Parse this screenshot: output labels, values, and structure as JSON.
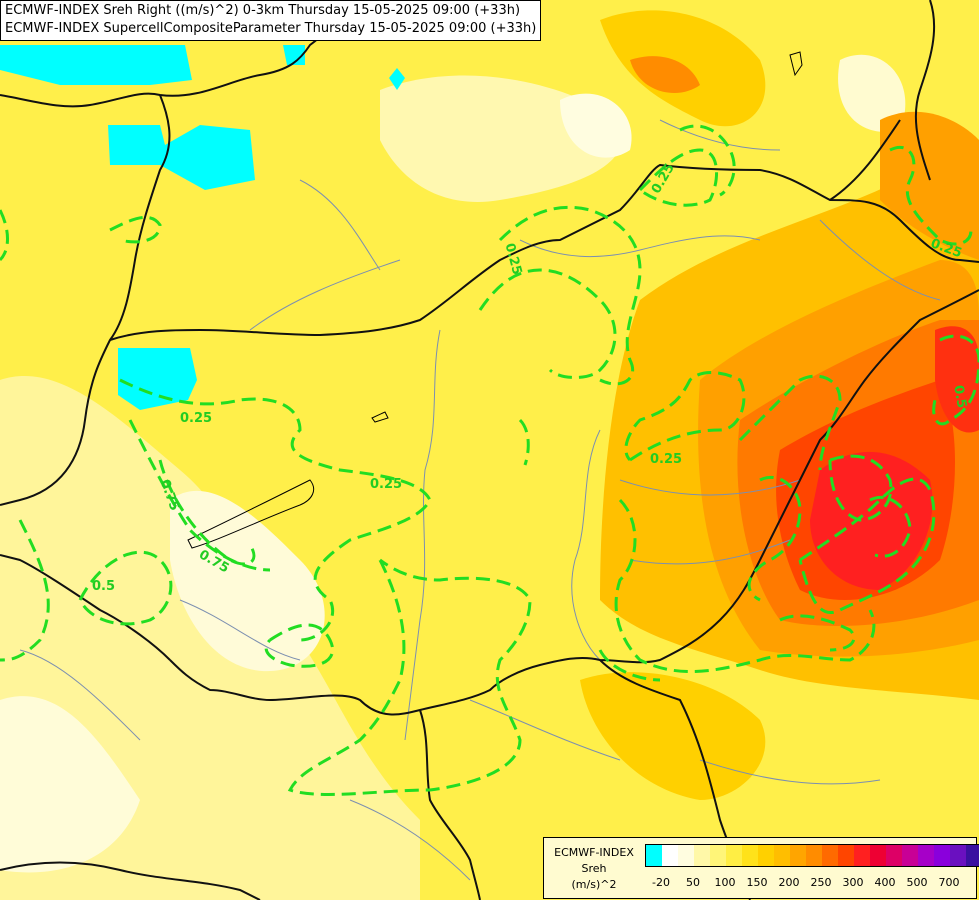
{
  "title": {
    "line1": "ECMWF-INDEX Sreh Right ((m/s)^2) 0-3km Thursday 15-05-2025 09:00 (+33h)",
    "line2": "ECMWF-INDEX SupercellCompositeParameter Thursday 15-05-2025 09:00 (+33h)"
  },
  "legend": {
    "line1": "ECMWF-INDEX",
    "line2": "Sreh",
    "line3": "(m/s)^2",
    "swatch_colors": [
      "#00ffff",
      "#ffffff",
      "#fffde0",
      "#fff8a8",
      "#fff578",
      "#ffee44",
      "#ffe21a",
      "#ffd000",
      "#ffbe00",
      "#ffa500",
      "#ff8c00",
      "#ff6a00",
      "#ff4500",
      "#ff2020",
      "#ee0033",
      "#dd0066",
      "#c80096",
      "#a600c8",
      "#8a00dc",
      "#6a10c0",
      "#3a10a0",
      "#0a0a78"
    ],
    "ticks": [
      "-20",
      "50",
      "100",
      "150",
      "200",
      "250",
      "300",
      "400",
      "500",
      "700"
    ]
  },
  "contour_labels": [
    "0.25",
    "0.25",
    "0.25",
    "0.25",
    "0.25",
    "0.25",
    "0.75",
    "0.75",
    "0.5",
    "0.5"
  ],
  "colors": {
    "contour": "#22dd22",
    "border": "#000000",
    "river": "#6688aa",
    "water": "#00ffff"
  }
}
